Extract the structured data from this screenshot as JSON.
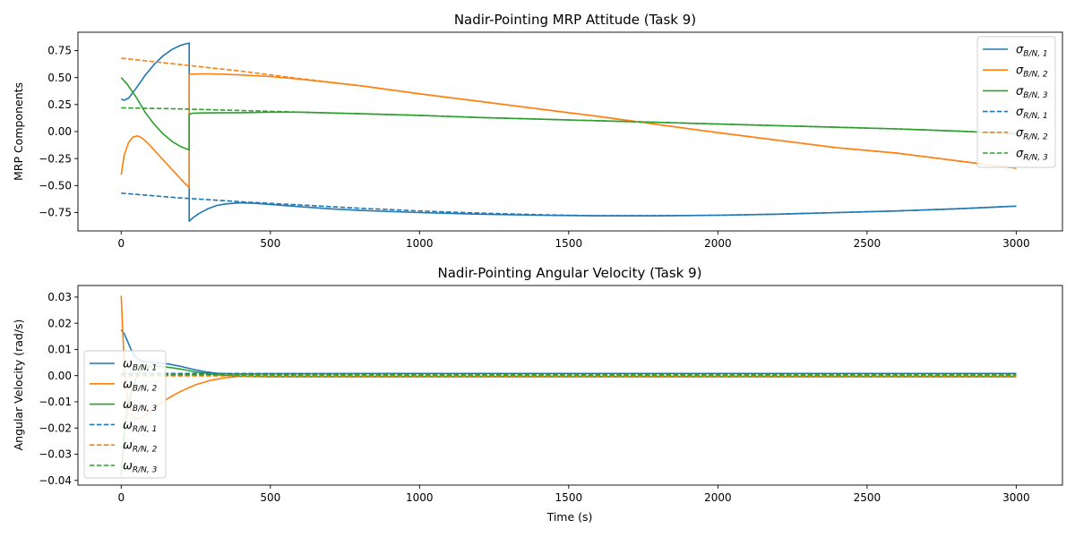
{
  "chart_data": [
    {
      "type": "line",
      "title": "Nadir-Pointing MRP Attitude (Task 9)",
      "xlabel": "",
      "ylabel": "MRP Components",
      "xlim": [
        -145,
        3155
      ],
      "ylim": [
        -0.92,
        0.92
      ],
      "xticks": [
        0,
        500,
        1000,
        1500,
        2000,
        2500,
        3000
      ],
      "xtick_labels": [
        "0",
        "500",
        "1000",
        "1500",
        "2000",
        "2500",
        "3000"
      ],
      "yticks": [
        0.75,
        0.5,
        0.25,
        0.0,
        -0.25,
        -0.5,
        -0.75
      ],
      "ytick_labels": [
        "0.75",
        "0.50",
        "0.25",
        "0.00",
        "−0.25",
        "−0.50",
        "−0.75"
      ],
      "legend_position": "upper-right",
      "series": [
        {
          "name": "σ_{B/N,1}",
          "color": "#1f77b4",
          "style": "solid",
          "x": [
            0,
            10,
            25,
            50,
            80,
            110,
            140,
            170,
            200,
            228,
            228.01,
            240,
            260,
            290,
            320,
            350,
            400,
            450,
            500,
            600,
            700,
            800,
            1000,
            1200,
            1400,
            1600,
            1800,
            2000,
            2200,
            2400,
            2600,
            2800,
            3000
          ],
          "y": [
            0.3,
            0.29,
            0.31,
            0.4,
            0.52,
            0.62,
            0.7,
            0.76,
            0.8,
            0.82,
            -0.83,
            -0.8,
            -0.76,
            -0.715,
            -0.685,
            -0.67,
            -0.66,
            -0.665,
            -0.675,
            -0.695,
            -0.715,
            -0.73,
            -0.75,
            -0.765,
            -0.775,
            -0.78,
            -0.78,
            -0.775,
            -0.765,
            -0.75,
            -0.735,
            -0.715,
            -0.69
          ]
        },
        {
          "name": "σ_{B/N,2}",
          "color": "#ff7f0e",
          "style": "solid",
          "x": [
            0,
            10,
            25,
            40,
            55,
            70,
            90,
            120,
            150,
            180,
            210,
            228,
            228.01,
            260,
            300,
            400,
            500,
            600,
            800,
            1000,
            1200,
            1400,
            1600,
            1800,
            2000,
            2200,
            2400,
            2600,
            2800,
            3000
          ],
          "y": [
            -0.4,
            -0.22,
            -0.1,
            -0.05,
            -0.04,
            -0.06,
            -0.11,
            -0.2,
            -0.29,
            -0.38,
            -0.47,
            -0.52,
            0.53,
            0.535,
            0.535,
            0.525,
            0.51,
            0.485,
            0.425,
            0.35,
            0.28,
            0.21,
            0.14,
            0.065,
            -0.01,
            -0.08,
            -0.15,
            -0.2,
            -0.27,
            -0.34
          ]
        },
        {
          "name": "σ_{B/N,3}",
          "color": "#2ca02c",
          "style": "solid",
          "x": [
            0,
            20,
            50,
            80,
            110,
            140,
            170,
            200,
            228,
            228.01,
            240,
            270,
            300,
            400,
            500,
            600,
            800,
            1000,
            1200,
            1400,
            1600,
            1800,
            2000,
            2200,
            2400,
            2600,
            2800,
            3000
          ],
          "y": [
            0.5,
            0.44,
            0.32,
            0.18,
            0.07,
            -0.02,
            -0.09,
            -0.14,
            -0.17,
            0.16,
            0.17,
            0.172,
            0.173,
            0.175,
            0.18,
            0.18,
            0.165,
            0.15,
            0.13,
            0.115,
            0.1,
            0.085,
            0.07,
            0.055,
            0.04,
            0.025,
            0.005,
            -0.02
          ]
        },
        {
          "name": "σ_{R/N,1}",
          "color": "#1f77b4",
          "style": "dashed",
          "x": [
            0,
            200,
            400,
            600,
            800,
            1000,
            1200,
            1400,
            1600,
            1800,
            2000,
            2200,
            2400,
            2600,
            2800,
            3000
          ],
          "y": [
            -0.57,
            -0.615,
            -0.65,
            -0.68,
            -0.71,
            -0.735,
            -0.755,
            -0.77,
            -0.78,
            -0.78,
            -0.775,
            -0.765,
            -0.75,
            -0.735,
            -0.715,
            -0.69
          ]
        },
        {
          "name": "σ_{R/N,2}",
          "color": "#ff7f0e",
          "style": "dashed",
          "x": [
            0,
            200,
            400,
            600,
            800,
            1000,
            1200,
            1400,
            1600,
            1800,
            2000,
            2200,
            2400,
            2600,
            2800,
            3000
          ],
          "y": [
            0.68,
            0.62,
            0.56,
            0.49,
            0.425,
            0.35,
            0.28,
            0.21,
            0.14,
            0.065,
            -0.01,
            -0.08,
            -0.15,
            -0.2,
            -0.27,
            -0.34
          ]
        },
        {
          "name": "σ_{R/N,3}",
          "color": "#2ca02c",
          "style": "dashed",
          "x": [
            0,
            200,
            400,
            600,
            800,
            1000,
            1200,
            1400,
            1600,
            1800,
            2000,
            2200,
            2400,
            2600,
            2800,
            3000
          ],
          "y": [
            0.22,
            0.21,
            0.195,
            0.18,
            0.165,
            0.15,
            0.13,
            0.115,
            0.1,
            0.085,
            0.07,
            0.055,
            0.04,
            0.025,
            0.005,
            -0.02
          ]
        }
      ]
    },
    {
      "type": "line",
      "title": "Nadir-Pointing Angular Velocity (Task 9)",
      "xlabel": "Time (s)",
      "ylabel": "Angular Velocity (rad/s)",
      "xlim": [
        -145,
        3155
      ],
      "ylim": [
        -0.0418,
        0.0344
      ],
      "xticks": [
        0,
        500,
        1000,
        1500,
        2000,
        2500,
        3000
      ],
      "xtick_labels": [
        "0",
        "500",
        "1000",
        "1500",
        "2000",
        "2500",
        "3000"
      ],
      "yticks": [
        0.03,
        0.02,
        0.01,
        0.0,
        -0.01,
        -0.02,
        -0.03,
        -0.04
      ],
      "ytick_labels": [
        "0.03",
        "0.02",
        "0.01",
        "0.00",
        "−0.01",
        "−0.02",
        "−0.03",
        "−0.04"
      ],
      "legend_position": "center-left",
      "series": [
        {
          "name": "ω_{B/N,1}",
          "color": "#1f77b4",
          "style": "solid",
          "x": [
            0,
            10,
            20,
            35,
            50,
            70,
            100,
            130,
            160,
            200,
            240,
            280,
            320,
            360,
            400,
            500,
            1000,
            2000,
            3000
          ],
          "y": [
            0.0175,
            0.016,
            0.0135,
            0.0095,
            0.0068,
            0.0055,
            0.005,
            0.0048,
            0.0044,
            0.0035,
            0.0024,
            0.0015,
            0.0009,
            0.0007,
            0.0006,
            0.0007,
            0.0008,
            0.0008,
            0.0008
          ]
        },
        {
          "name": "ω_{B/N,2}",
          "color": "#ff7f0e",
          "style": "solid",
          "x": [
            0,
            4,
            10,
            20,
            35,
            50,
            70,
            100,
            130,
            160,
            200,
            250,
            300,
            350,
            400,
            450,
            500,
            1000,
            2000,
            3000
          ],
          "y": [
            0.0305,
            0.02,
            0.005,
            -0.008,
            -0.015,
            -0.0165,
            -0.016,
            -0.0135,
            -0.0108,
            -0.0085,
            -0.006,
            -0.0035,
            -0.0018,
            -0.0008,
            -0.0003,
            -0.0004,
            -0.0005,
            -0.0005,
            -0.0005,
            -0.0005
          ]
        },
        {
          "name": "ω_{B/N,3}",
          "color": "#2ca02c",
          "style": "solid",
          "x": [
            0,
            5,
            10,
            20,
            35,
            50,
            70,
            90,
            110,
            140,
            170,
            200,
            250,
            300,
            350,
            400,
            500,
            1000,
            2000,
            3000
          ],
          "y": [
            -0.038,
            -0.03,
            -0.022,
            -0.013,
            -0.006,
            -0.001,
            0.002,
            0.0033,
            0.0036,
            0.0034,
            0.003,
            0.0025,
            0.0014,
            0.0006,
            0.0001,
            -0.0002,
            -0.0003,
            -0.0003,
            -0.0003,
            -0.0003
          ]
        },
        {
          "name": "ω_{R/N,1}",
          "color": "#1f77b4",
          "style": "dashed",
          "x": [
            0,
            3000
          ],
          "y": [
            0.0008,
            0.0008
          ]
        },
        {
          "name": "ω_{R/N,2}",
          "color": "#ff7f0e",
          "style": "dashed",
          "x": [
            0,
            3000
          ],
          "y": [
            -0.0001,
            -0.0001
          ]
        },
        {
          "name": "ω_{R/N,3}",
          "color": "#2ca02c",
          "style": "dashed",
          "x": [
            0,
            3000
          ],
          "y": [
            0.0003,
            0.0003
          ]
        }
      ]
    }
  ],
  "legend_labels": [
    [
      {
        "sym": "σ",
        "sub": "B/N, 1"
      },
      {
        "sym": "σ",
        "sub": "B/N, 2"
      },
      {
        "sym": "σ",
        "sub": "B/N, 3"
      },
      {
        "sym": "σ",
        "sub": "R/N, 1"
      },
      {
        "sym": "σ",
        "sub": "R/N, 2"
      },
      {
        "sym": "σ",
        "sub": "R/N, 3"
      }
    ],
    [
      {
        "sym": "ω",
        "sub": "B/N, 1"
      },
      {
        "sym": "ω",
        "sub": "B/N, 2"
      },
      {
        "sym": "ω",
        "sub": "B/N, 3"
      },
      {
        "sym": "ω",
        "sub": "R/N, 1"
      },
      {
        "sym": "ω",
        "sub": "R/N, 2"
      },
      {
        "sym": "ω",
        "sub": "R/N, 3"
      }
    ]
  ]
}
